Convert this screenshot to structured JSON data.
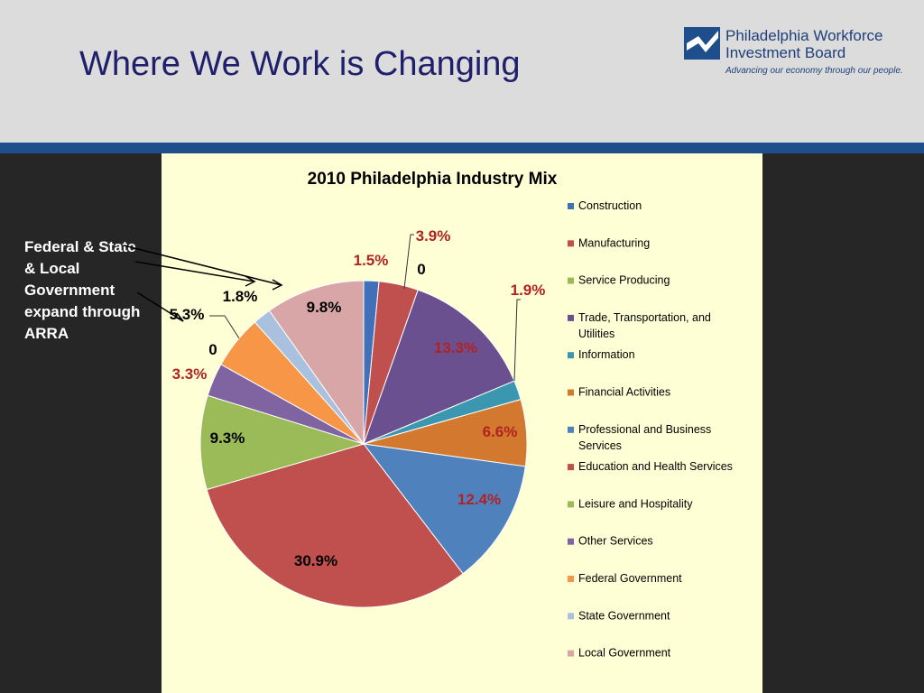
{
  "slide": {
    "title": "Where We Work is Changing",
    "logo_line1": "Philadelphia Workforce",
    "logo_line2": "Investment Board",
    "logo_tagline": "Advancing our economy through our people.",
    "callout": "Federal & State & Local Government expand through ARRA"
  },
  "colors": {
    "header_bg": "#dcdcdc",
    "title": "#1f1f6b",
    "accent_bar": "#1f4e8c",
    "chart_bg": "#ffffd6",
    "body_bg": "#262626"
  },
  "chart_data": {
    "type": "pie",
    "title": "2010 Philadelphia Industry Mix",
    "legend_position": "right",
    "slices": [
      {
        "name": "Construction",
        "value": 1.5,
        "label": "1.5%",
        "color": "#4170b8",
        "label_color": "#b22222"
      },
      {
        "name": "Manufacturing",
        "value": 3.9,
        "label": "3.9%",
        "color": "#c0504d",
        "label_color": "#b22222"
      },
      {
        "name": "Service Producing",
        "value": 0,
        "label": "0",
        "color": "#9bbb59",
        "label_color": "#000000"
      },
      {
        "name": "Trade, Transportation, and Utilities",
        "value": 13.3,
        "label": "13.3%",
        "color": "#6b5090",
        "label_color": "#b22222"
      },
      {
        "name": "Information",
        "value": 1.9,
        "label": "1.9%",
        "color": "#3b97b0",
        "label_color": "#b22222"
      },
      {
        "name": "Financial Activities",
        "value": 6.6,
        "label": "6.6%",
        "color": "#d2792f",
        "label_color": "#b22222"
      },
      {
        "name": "Professional and Business Services",
        "value": 12.4,
        "label": "12.4%",
        "color": "#4f81bd",
        "label_color": "#b22222"
      },
      {
        "name": "Education and Health Services",
        "value": 30.9,
        "label": "30.9%",
        "color": "#c0504d",
        "label_color": "#000000"
      },
      {
        "name": "Leisure and Hospitality",
        "value": 9.3,
        "label": "9.3%",
        "color": "#9bbb59",
        "label_color": "#000000"
      },
      {
        "name": "Other Services",
        "value": 3.3,
        "label": "3.3%",
        "color": "#8064a2",
        "label_color": "#b22222"
      },
      {
        "name": "Federal Government",
        "value": 5.3,
        "label": "5.3%",
        "color": "#f79646",
        "label_color": "#000000"
      },
      {
        "name": "State Government",
        "value": 1.8,
        "label": "1.8%",
        "color": "#a9c0df",
        "label_color": "#000000"
      },
      {
        "name": "Local Government",
        "value": 9.8,
        "label": "9.8%",
        "color": "#d9a6a8",
        "label_color": "#000000"
      }
    ],
    "extra_labels": [
      {
        "label": "0",
        "label_color": "#000000"
      }
    ]
  }
}
